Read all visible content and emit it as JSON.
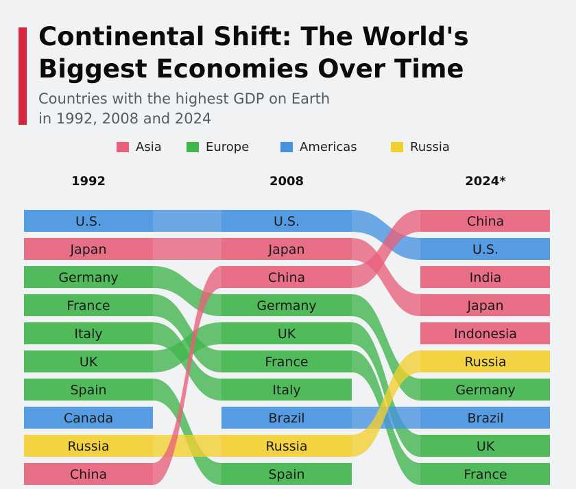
{
  "title": "Continental Shift: The World's\nBiggest Economies Over Time",
  "subtitle": "Countries with the highest GDP on Earth\nin 1992, 2008 and 2024",
  "legend": [
    {
      "label": "Asia",
      "color": "#e8607a"
    },
    {
      "label": "Europe",
      "color": "#3fb54a"
    },
    {
      "label": "Americas",
      "color": "#4592e0"
    },
    {
      "label": "Russia",
      "color": "#f3cf2e"
    }
  ],
  "chart_data": {
    "type": "bump",
    "years": [
      "1992",
      "2008",
      "2024*"
    ],
    "rankings": {
      "1992": [
        "U.S.",
        "Japan",
        "Germany",
        "France",
        "Italy",
        "UK",
        "Spain",
        "Canada",
        "Russia",
        "China"
      ],
      "2008": [
        "U.S.",
        "Japan",
        "China",
        "Germany",
        "UK",
        "France",
        "Italy",
        "Brazil",
        "Russia",
        "Spain"
      ],
      "2024*": [
        "China",
        "U.S.",
        "India",
        "Japan",
        "Indonesia",
        "Russia",
        "Germany",
        "Brazil",
        "UK",
        "France"
      ]
    },
    "region_of": {
      "U.S.": "Americas",
      "Canada": "Americas",
      "Brazil": "Americas",
      "Japan": "Asia",
      "China": "Asia",
      "India": "Asia",
      "Indonesia": "Asia",
      "Germany": "Europe",
      "France": "Europe",
      "Italy": "Europe",
      "UK": "Europe",
      "Spain": "Europe",
      "Russia": "Russia"
    },
    "flows": [
      {
        "country": "U.S.",
        "from": "1992",
        "to": "2008"
      },
      {
        "country": "Japan",
        "from": "1992",
        "to": "2008"
      },
      {
        "country": "Germany",
        "from": "1992",
        "to": "2008"
      },
      {
        "country": "France",
        "from": "1992",
        "to": "2008"
      },
      {
        "country": "Italy",
        "from": "1992",
        "to": "2008"
      },
      {
        "country": "UK",
        "from": "1992",
        "to": "2008"
      },
      {
        "country": "Spain",
        "from": "1992",
        "to": "2008"
      },
      {
        "country": "Russia",
        "from": "1992",
        "to": "2008"
      },
      {
        "country": "China",
        "from": "1992",
        "to": "2008"
      },
      {
        "country": "U.S.",
        "from": "2008",
        "to": "2024*"
      },
      {
        "country": "Japan",
        "from": "2008",
        "to": "2024*"
      },
      {
        "country": "China",
        "from": "2008",
        "to": "2024*"
      },
      {
        "country": "Germany",
        "from": "2008",
        "to": "2024*"
      },
      {
        "country": "UK",
        "from": "2008",
        "to": "2024*"
      },
      {
        "country": "France",
        "from": "2008",
        "to": "2024*"
      },
      {
        "country": "Brazil",
        "from": "2008",
        "to": "2024*"
      },
      {
        "country": "Russia",
        "from": "2008",
        "to": "2024*"
      }
    ]
  }
}
